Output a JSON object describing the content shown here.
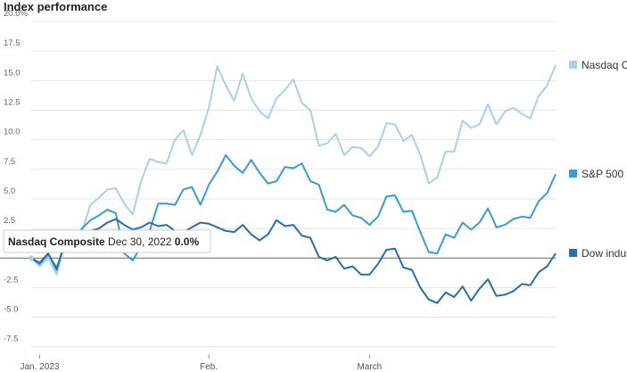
{
  "chart_data": {
    "type": "line",
    "title": "Index performance",
    "categories": [
      null,
      "Jan. 2023",
      null,
      null,
      null,
      null,
      null,
      null,
      null,
      null,
      null,
      null,
      null,
      null,
      null,
      null,
      null,
      null,
      null,
      null,
      null,
      "Feb.",
      null,
      null,
      null,
      null,
      null,
      null,
      null,
      null,
      null,
      null,
      null,
      null,
      null,
      null,
      null,
      null,
      null,
      null,
      "March",
      null,
      null,
      null,
      null,
      null,
      null,
      null,
      null,
      null,
      null,
      null,
      null,
      null,
      null,
      null,
      null,
      null,
      null,
      null,
      null,
      null,
      null
    ],
    "series": [
      {
        "name": "Nasdaq Composite",
        "color": "#a8d0ea",
        "values": [
          0,
          -0.7,
          0,
          -1.4,
          1.3,
          1.1,
          2.3,
          4.5,
          5.1,
          5.8,
          5.9,
          4.6,
          3.7,
          6.5,
          8.4,
          8.1,
          8.0,
          10.0,
          10.8,
          8.7,
          10.4,
          12.7,
          16.2,
          14.6,
          13.3,
          15.6,
          13.5,
          12.4,
          11.8,
          13.5,
          14.2,
          15.1,
          13.1,
          12.5,
          9.5,
          9.7,
          10.5,
          8.7,
          9.4,
          9.3,
          8.6,
          9.4,
          11.4,
          11.3,
          9.9,
          10.4,
          8.7,
          6.3,
          6.8,
          9.0,
          9.0,
          11.6,
          11.0,
          11.3,
          13.0,
          11.3,
          12.4,
          12.7,
          12.2,
          11.8,
          13.7,
          14.6,
          16.3
        ]
      },
      {
        "name": "S&P 500",
        "color": "#3b9ad5",
        "values": [
          0,
          -0.5,
          0.3,
          -0.8,
          1.1,
          1.5,
          2.5,
          3.2,
          3.6,
          4.1,
          3.8,
          0.4,
          -0.2,
          1.0,
          2.3,
          4.6,
          4.6,
          4.5,
          5.8,
          6.0,
          4.5,
          6.2,
          7.3,
          8.7,
          7.8,
          7.2,
          8.3,
          7.2,
          6.3,
          6.5,
          7.7,
          7.6,
          8.0,
          6.5,
          6.2,
          4.1,
          3.9,
          4.5,
          3.6,
          3.4,
          2.8,
          3.5,
          5.2,
          5.3,
          3.9,
          4.0,
          2.2,
          0.5,
          0.4,
          2.0,
          1.7,
          3.0,
          2.4,
          3.0,
          4.2,
          2.6,
          2.8,
          3.3,
          3.5,
          3.4,
          4.8,
          5.5,
          7.1
        ]
      },
      {
        "name": "Dow industrials",
        "color": "#2a6ea6",
        "values": [
          0,
          -0.4,
          0.4,
          -1.0,
          1.4,
          1.0,
          1.6,
          2.3,
          2.5,
          3.0,
          3.3,
          2.8,
          2.4,
          2.6,
          3.0,
          2.7,
          2.8,
          2.3,
          2.2,
          2.6,
          3.0,
          2.9,
          2.6,
          2.3,
          2.2,
          2.8,
          2.0,
          1.5,
          2.0,
          3.2,
          2.7,
          2.8,
          1.9,
          1.7,
          0.1,
          -0.2,
          0.1,
          -0.9,
          -0.7,
          -1.4,
          -1.4,
          -0.5,
          0.7,
          0.8,
          -0.8,
          -1.0,
          -2.5,
          -3.5,
          -3.8,
          -2.9,
          -3.3,
          -2.4,
          -3.6,
          -2.6,
          -1.8,
          -3.2,
          -3.1,
          -2.8,
          -2.2,
          -2.3,
          -1.2,
          -0.7,
          0.4
        ]
      }
    ],
    "ylim": [
      -8.5,
      20
    ],
    "yticks": [
      {
        "value": 20,
        "label": "20.0%"
      },
      17.5,
      {
        "value": 15,
        "label": "15.0"
      },
      12.5,
      {
        "value": 10,
        "label": "10.0"
      },
      7.5,
      {
        "value": 5,
        "label": "5.0"
      },
      2.5,
      0,
      -2.5,
      {
        "value": -5,
        "label": "-5.0"
      },
      -7.5
    ],
    "grid": true,
    "tooltip": {
      "series": "Nasdaq Composite",
      "date": "Dec 30, 2022",
      "value": 0,
      "value_label": "0.0%"
    }
  }
}
